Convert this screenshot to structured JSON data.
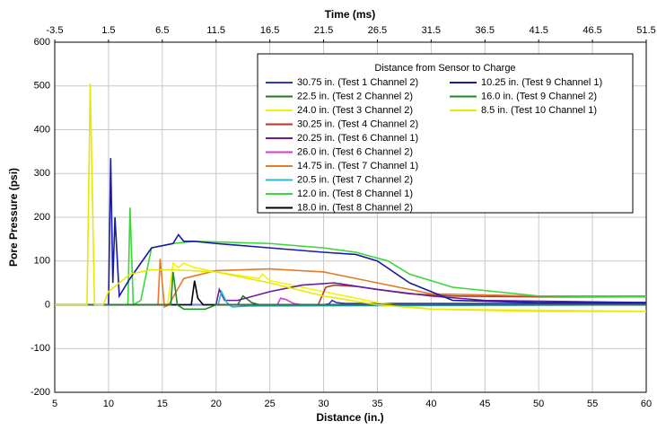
{
  "chart_data": {
    "type": "line",
    "x_label": "Distance (in.)",
    "y_label": "Pore Pressure (psi)",
    "x2_label": "Time (ms)",
    "legend_title": "Distance from Sensor to Charge",
    "legend_position": "upper right",
    "grid": true,
    "xlim": [
      5,
      60
    ],
    "xticks": [
      5,
      10,
      15,
      20,
      25,
      30,
      35,
      40,
      45,
      50,
      55,
      60
    ],
    "ylim": [
      -200,
      600
    ],
    "yticks": [
      -200,
      -100,
      0,
      100,
      200,
      300,
      400,
      500,
      600
    ],
    "x2lim": [
      -3.5,
      51.5
    ],
    "x2ticks": [
      -3.5,
      1.5,
      6.5,
      11.5,
      16.5,
      21.5,
      26.5,
      31.5,
      36.5,
      41.5,
      46.5,
      51.5
    ],
    "series": [
      {
        "name": "30.75 in. (Test 1 Channel 2)",
        "color": "#2b35d8",
        "x": [
          5,
          30,
          30.5,
          30.8,
          31.2,
          32,
          40,
          60
        ],
        "values": [
          0,
          0,
          2,
          10,
          5,
          3,
          3,
          3
        ]
      },
      {
        "name": "22.5 in. (Test 2 Channel 2)",
        "color": "#1f7a1f",
        "x": [
          5,
          22,
          22.5,
          22.8,
          23.3,
          24,
          60
        ],
        "values": [
          0,
          0,
          20,
          15,
          5,
          0,
          0
        ]
      },
      {
        "name": "24.0 in. (Test 3 Channel 2)",
        "color": "#f2f20a",
        "x": [
          5,
          15.5,
          16,
          16.5,
          17,
          18,
          20,
          24,
          24.3,
          25,
          30,
          35,
          40,
          60
        ],
        "values": [
          0,
          0,
          95,
          85,
          95,
          85,
          75,
          60,
          70,
          55,
          30,
          5,
          -10,
          -15
        ]
      },
      {
        "name": "30.25 in. (Test 4 Channel 2)",
        "color": "#b03a2e",
        "x": [
          5,
          29.5,
          30.2,
          31,
          33,
          35,
          38,
          42,
          50,
          60
        ],
        "values": [
          0,
          0,
          40,
          45,
          42,
          35,
          25,
          20,
          18,
          18
        ]
      },
      {
        "name": "20.25 in. (Test 6 Channel 1)",
        "color": "#6a1b9a",
        "x": [
          5,
          20,
          20.3,
          20.8,
          22,
          25,
          28,
          31,
          35,
          40,
          45,
          60
        ],
        "values": [
          0,
          0,
          35,
          10,
          10,
          30,
          45,
          50,
          35,
          20,
          10,
          5
        ]
      },
      {
        "name": "26.0 in. (Test 6 Channel 2)",
        "color": "#d63ad6",
        "x": [
          5,
          25.7,
          26,
          26.5,
          27.2,
          28,
          60
        ],
        "values": [
          0,
          0,
          15,
          12,
          3,
          0,
          0
        ]
      },
      {
        "name": "14.75 in. (Test 7 Channel 1)",
        "color": "#e07b2a",
        "x": [
          5,
          14.6,
          14.8,
          15.2,
          15.6,
          17,
          20,
          25,
          30,
          35,
          40,
          50,
          60
        ],
        "values": [
          0,
          0,
          105,
          -5,
          0,
          60,
          78,
          82,
          75,
          50,
          25,
          20,
          20
        ]
      },
      {
        "name": "20.5 in. (Test 7 Channel 2)",
        "color": "#2ab8d8",
        "x": [
          5,
          20.2,
          20.5,
          21,
          21.5,
          23,
          60
        ],
        "values": [
          0,
          0,
          30,
          5,
          -5,
          -3,
          0
        ]
      },
      {
        "name": "12.0 in. (Test 8 Channel 1)",
        "color": "#3ad63a",
        "x": [
          5,
          11.8,
          12,
          12.3,
          13,
          14,
          16,
          18,
          25,
          30,
          33,
          36,
          38,
          42,
          50,
          60
        ],
        "values": [
          0,
          0,
          222,
          0,
          10,
          130,
          140,
          145,
          140,
          130,
          120,
          100,
          70,
          40,
          20,
          18
        ]
      },
      {
        "name": "18.0 in. (Test 8 Channel 2)",
        "color": "#000000",
        "x": [
          5,
          17.7,
          18,
          18.3,
          18.8,
          60
        ],
        "values": [
          0,
          0,
          55,
          15,
          0,
          0
        ]
      },
      {
        "name": "10.25 in. (Test 9 Channel 1)",
        "color": "#1a1aa8",
        "x": [
          5,
          10,
          10.2,
          10.4,
          10.6,
          11,
          12,
          14,
          16,
          16.5,
          17,
          18,
          20,
          25,
          30,
          33,
          35,
          38,
          42,
          50,
          60
        ],
        "values": [
          0,
          0,
          335,
          50,
          200,
          20,
          60,
          130,
          140,
          160,
          145,
          145,
          140,
          130,
          120,
          115,
          100,
          50,
          10,
          5,
          5
        ]
      },
      {
        "name": "16.0 in. (Test 9 Channel 2)",
        "color": "#1f8a1f",
        "x": [
          5,
          15.8,
          16,
          16.4,
          17,
          19,
          20,
          60
        ],
        "values": [
          0,
          0,
          75,
          0,
          -10,
          -10,
          0,
          0
        ]
      },
      {
        "name": "8.5 in. (Test 10 Channel 1)",
        "color": "#e8e800",
        "x": [
          5,
          8,
          8.3,
          8.7,
          9,
          9.5,
          10,
          12,
          14,
          16,
          20,
          25,
          30,
          35,
          40,
          50,
          60
        ],
        "values": [
          0,
          0,
          505,
          0,
          0,
          0,
          30,
          70,
          80,
          80,
          75,
          50,
          20,
          0,
          -10,
          -15,
          -15
        ]
      }
    ]
  }
}
